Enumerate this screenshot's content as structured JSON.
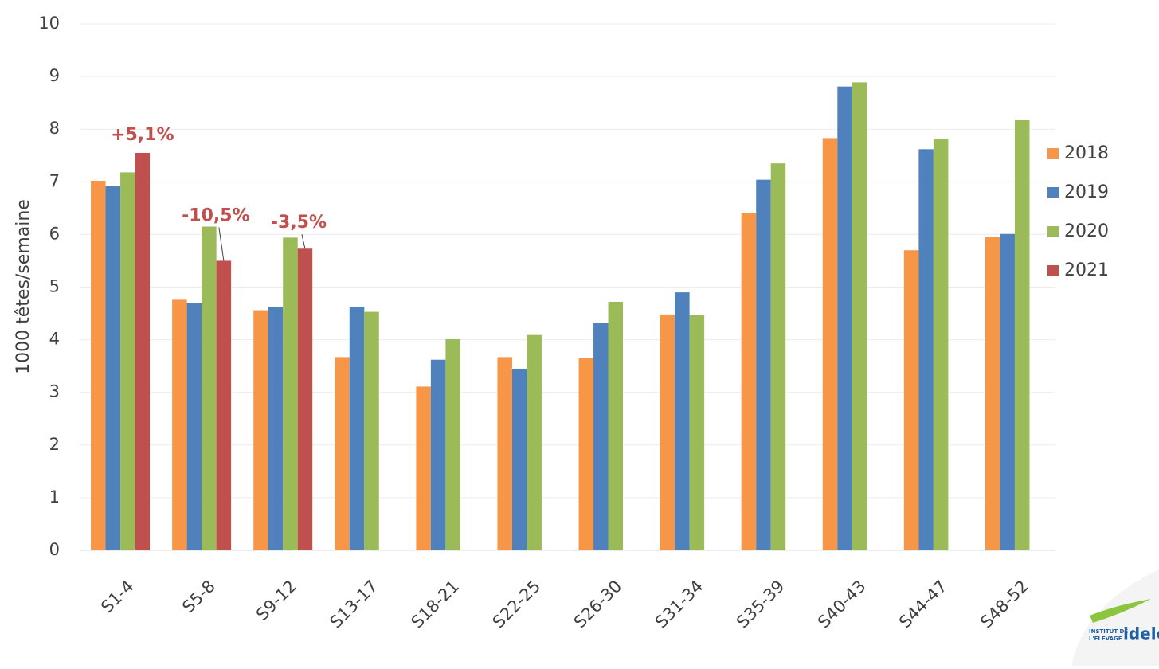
{
  "chart_data": {
    "type": "bar",
    "y_label": "1000 têtes/semaine",
    "categories": [
      "S1-4",
      "S5-8",
      "S9-12",
      "S13-17",
      "S18-21",
      "S22-25",
      "S26-30",
      "S31-34",
      "S35-39",
      "S40-43",
      "S44-47",
      "S48-52"
    ],
    "series": [
      {
        "name": "2018",
        "color": "#f79646",
        "values": [
          7.02,
          4.76,
          4.56,
          3.67,
          3.11,
          3.67,
          3.65,
          4.48,
          6.41,
          7.83,
          5.7,
          5.95
        ]
      },
      {
        "name": "2019",
        "color": "#4f81bd",
        "values": [
          6.92,
          4.7,
          4.63,
          4.63,
          3.62,
          3.45,
          4.32,
          4.9,
          7.04,
          8.81,
          7.62,
          6.01
        ]
      },
      {
        "name": "2020",
        "color": "#9bbb59",
        "values": [
          7.18,
          6.15,
          5.94,
          4.53,
          4.01,
          4.09,
          4.72,
          4.47,
          7.35,
          8.89,
          7.82,
          8.17
        ]
      },
      {
        "name": "2021",
        "color": "#c0504d",
        "values": [
          7.55,
          5.5,
          5.73,
          null,
          null,
          null,
          null,
          null,
          null,
          null,
          null,
          null
        ]
      }
    ],
    "annotations": [
      "+5,1%",
      "-10,5%",
      "-3,5%"
    ],
    "annotation_color": "#c0504d",
    "ylim": [
      0,
      10
    ],
    "yticks": [
      0,
      1,
      2,
      3,
      4,
      5,
      6,
      7,
      8,
      9,
      10
    ],
    "grid": true,
    "legend": "right"
  },
  "logo": {
    "line1": "INSTITUT DE",
    "line2": "L'ELEVAGE",
    "brand": "idele"
  }
}
